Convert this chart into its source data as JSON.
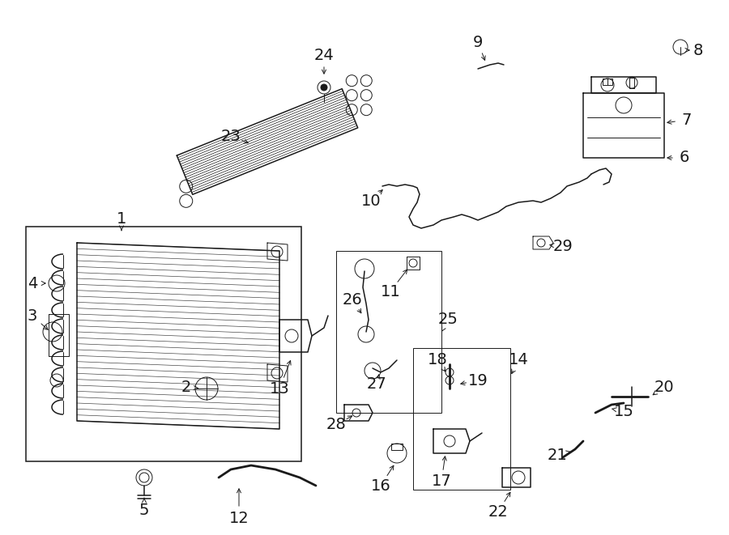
{
  "title": "",
  "bg_color": "#ffffff",
  "line_color": "#1a1a1a",
  "lw_thin": 0.7,
  "lw_med": 1.1,
  "lw_thick": 2.0,
  "label_fontsize": 14,
  "small_label_fontsize": 11
}
